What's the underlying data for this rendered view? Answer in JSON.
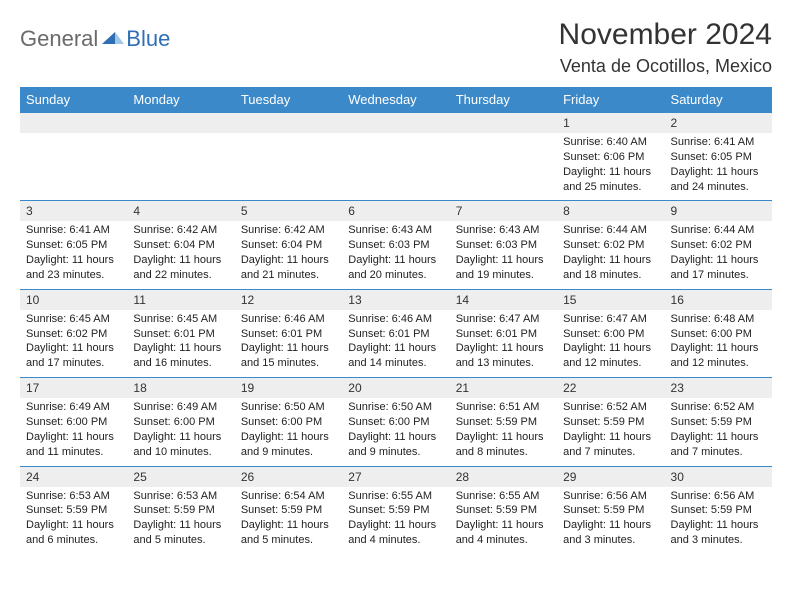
{
  "logo": {
    "general": "General",
    "blue": "Blue"
  },
  "title": "November 2024",
  "location": "Venta de Ocotillos, Mexico",
  "colors": {
    "header_bg": "#3b89c9",
    "header_text": "#ffffff",
    "daynum_bg": "#eeeeee",
    "rule": "#3b89c9",
    "logo_gray": "#6a6a6a",
    "logo_blue": "#2f6eb5"
  },
  "dow": [
    "Sunday",
    "Monday",
    "Tuesday",
    "Wednesday",
    "Thursday",
    "Friday",
    "Saturday"
  ],
  "weeks": [
    [
      null,
      null,
      null,
      null,
      null,
      {
        "n": "1",
        "sr": "Sunrise: 6:40 AM",
        "ss": "Sunset: 6:06 PM",
        "d1": "Daylight: 11 hours",
        "d2": "and 25 minutes."
      },
      {
        "n": "2",
        "sr": "Sunrise: 6:41 AM",
        "ss": "Sunset: 6:05 PM",
        "d1": "Daylight: 11 hours",
        "d2": "and 24 minutes."
      }
    ],
    [
      {
        "n": "3",
        "sr": "Sunrise: 6:41 AM",
        "ss": "Sunset: 6:05 PM",
        "d1": "Daylight: 11 hours",
        "d2": "and 23 minutes."
      },
      {
        "n": "4",
        "sr": "Sunrise: 6:42 AM",
        "ss": "Sunset: 6:04 PM",
        "d1": "Daylight: 11 hours",
        "d2": "and 22 minutes."
      },
      {
        "n": "5",
        "sr": "Sunrise: 6:42 AM",
        "ss": "Sunset: 6:04 PM",
        "d1": "Daylight: 11 hours",
        "d2": "and 21 minutes."
      },
      {
        "n": "6",
        "sr": "Sunrise: 6:43 AM",
        "ss": "Sunset: 6:03 PM",
        "d1": "Daylight: 11 hours",
        "d2": "and 20 minutes."
      },
      {
        "n": "7",
        "sr": "Sunrise: 6:43 AM",
        "ss": "Sunset: 6:03 PM",
        "d1": "Daylight: 11 hours",
        "d2": "and 19 minutes."
      },
      {
        "n": "8",
        "sr": "Sunrise: 6:44 AM",
        "ss": "Sunset: 6:02 PM",
        "d1": "Daylight: 11 hours",
        "d2": "and 18 minutes."
      },
      {
        "n": "9",
        "sr": "Sunrise: 6:44 AM",
        "ss": "Sunset: 6:02 PM",
        "d1": "Daylight: 11 hours",
        "d2": "and 17 minutes."
      }
    ],
    [
      {
        "n": "10",
        "sr": "Sunrise: 6:45 AM",
        "ss": "Sunset: 6:02 PM",
        "d1": "Daylight: 11 hours",
        "d2": "and 17 minutes."
      },
      {
        "n": "11",
        "sr": "Sunrise: 6:45 AM",
        "ss": "Sunset: 6:01 PM",
        "d1": "Daylight: 11 hours",
        "d2": "and 16 minutes."
      },
      {
        "n": "12",
        "sr": "Sunrise: 6:46 AM",
        "ss": "Sunset: 6:01 PM",
        "d1": "Daylight: 11 hours",
        "d2": "and 15 minutes."
      },
      {
        "n": "13",
        "sr": "Sunrise: 6:46 AM",
        "ss": "Sunset: 6:01 PM",
        "d1": "Daylight: 11 hours",
        "d2": "and 14 minutes."
      },
      {
        "n": "14",
        "sr": "Sunrise: 6:47 AM",
        "ss": "Sunset: 6:01 PM",
        "d1": "Daylight: 11 hours",
        "d2": "and 13 minutes."
      },
      {
        "n": "15",
        "sr": "Sunrise: 6:47 AM",
        "ss": "Sunset: 6:00 PM",
        "d1": "Daylight: 11 hours",
        "d2": "and 12 minutes."
      },
      {
        "n": "16",
        "sr": "Sunrise: 6:48 AM",
        "ss": "Sunset: 6:00 PM",
        "d1": "Daylight: 11 hours",
        "d2": "and 12 minutes."
      }
    ],
    [
      {
        "n": "17",
        "sr": "Sunrise: 6:49 AM",
        "ss": "Sunset: 6:00 PM",
        "d1": "Daylight: 11 hours",
        "d2": "and 11 minutes."
      },
      {
        "n": "18",
        "sr": "Sunrise: 6:49 AM",
        "ss": "Sunset: 6:00 PM",
        "d1": "Daylight: 11 hours",
        "d2": "and 10 minutes."
      },
      {
        "n": "19",
        "sr": "Sunrise: 6:50 AM",
        "ss": "Sunset: 6:00 PM",
        "d1": "Daylight: 11 hours",
        "d2": "and 9 minutes."
      },
      {
        "n": "20",
        "sr": "Sunrise: 6:50 AM",
        "ss": "Sunset: 6:00 PM",
        "d1": "Daylight: 11 hours",
        "d2": "and 9 minutes."
      },
      {
        "n": "21",
        "sr": "Sunrise: 6:51 AM",
        "ss": "Sunset: 5:59 PM",
        "d1": "Daylight: 11 hours",
        "d2": "and 8 minutes."
      },
      {
        "n": "22",
        "sr": "Sunrise: 6:52 AM",
        "ss": "Sunset: 5:59 PM",
        "d1": "Daylight: 11 hours",
        "d2": "and 7 minutes."
      },
      {
        "n": "23",
        "sr": "Sunrise: 6:52 AM",
        "ss": "Sunset: 5:59 PM",
        "d1": "Daylight: 11 hours",
        "d2": "and 7 minutes."
      }
    ],
    [
      {
        "n": "24",
        "sr": "Sunrise: 6:53 AM",
        "ss": "Sunset: 5:59 PM",
        "d1": "Daylight: 11 hours",
        "d2": "and 6 minutes."
      },
      {
        "n": "25",
        "sr": "Sunrise: 6:53 AM",
        "ss": "Sunset: 5:59 PM",
        "d1": "Daylight: 11 hours",
        "d2": "and 5 minutes."
      },
      {
        "n": "26",
        "sr": "Sunrise: 6:54 AM",
        "ss": "Sunset: 5:59 PM",
        "d1": "Daylight: 11 hours",
        "d2": "and 5 minutes."
      },
      {
        "n": "27",
        "sr": "Sunrise: 6:55 AM",
        "ss": "Sunset: 5:59 PM",
        "d1": "Daylight: 11 hours",
        "d2": "and 4 minutes."
      },
      {
        "n": "28",
        "sr": "Sunrise: 6:55 AM",
        "ss": "Sunset: 5:59 PM",
        "d1": "Daylight: 11 hours",
        "d2": "and 4 minutes."
      },
      {
        "n": "29",
        "sr": "Sunrise: 6:56 AM",
        "ss": "Sunset: 5:59 PM",
        "d1": "Daylight: 11 hours",
        "d2": "and 3 minutes."
      },
      {
        "n": "30",
        "sr": "Sunrise: 6:56 AM",
        "ss": "Sunset: 5:59 PM",
        "d1": "Daylight: 11 hours",
        "d2": "and 3 minutes."
      }
    ]
  ]
}
